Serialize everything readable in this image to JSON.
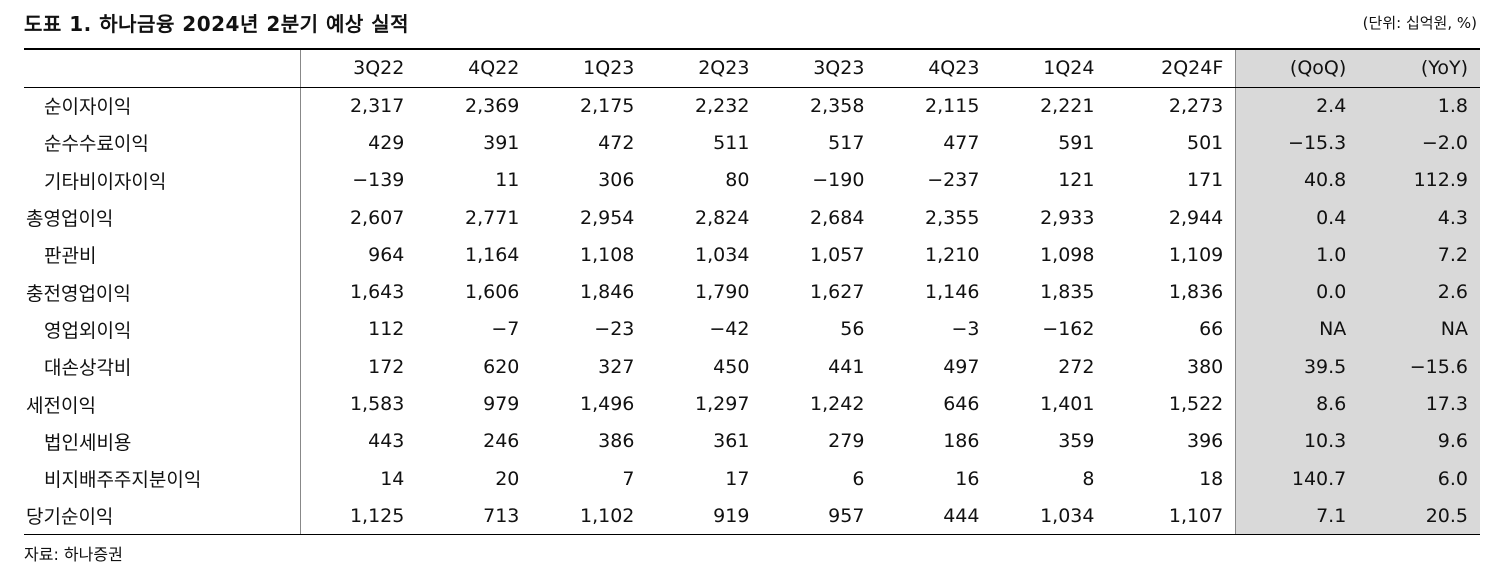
{
  "header": {
    "title": "도표 1. 하나금융 2024년 2분기 예상 실적",
    "unit": "(단위: 십억원, %)"
  },
  "table": {
    "columns": [
      "3Q22",
      "4Q22",
      "1Q23",
      "2Q23",
      "3Q23",
      "4Q23",
      "1Q24",
      "2Q24F",
      "(QoQ)",
      "(YoY)"
    ],
    "rows": [
      [
        "순이자이익",
        "2,317",
        "2,369",
        "2,175",
        "2,232",
        "2,358",
        "2,115",
        "2,221",
        "2,273",
        "2.4",
        "1.8"
      ],
      [
        "순수수료이익",
        "429",
        "391",
        "472",
        "511",
        "517",
        "477",
        "591",
        "501",
        "−15.3",
        "−2.0"
      ],
      [
        "기타비이자이익",
        "−139",
        "11",
        "306",
        "80",
        "−190",
        "−237",
        "121",
        "171",
        "40.8",
        "112.9"
      ],
      [
        "총영업이익",
        "2,607",
        "2,771",
        "2,954",
        "2,824",
        "2,684",
        "2,355",
        "2,933",
        "2,944",
        "0.4",
        "4.3"
      ],
      [
        "판관비",
        "964",
        "1,164",
        "1,108",
        "1,034",
        "1,057",
        "1,210",
        "1,098",
        "1,109",
        "1.0",
        "7.2"
      ],
      [
        "충전영업이익",
        "1,643",
        "1,606",
        "1,846",
        "1,790",
        "1,627",
        "1,146",
        "1,835",
        "1,836",
        "0.0",
        "2.6"
      ],
      [
        "영업외이익",
        "112",
        "−7",
        "−23",
        "−42",
        "56",
        "−3",
        "−162",
        "66",
        "NA",
        "NA"
      ],
      [
        "대손상각비",
        "172",
        "620",
        "327",
        "450",
        "441",
        "497",
        "272",
        "380",
        "39.5",
        "−15.6"
      ],
      [
        "세전이익",
        "1,583",
        "979",
        "1,496",
        "1,297",
        "1,242",
        "646",
        "1,401",
        "1,522",
        "8.6",
        "17.3"
      ],
      [
        "법인세비용",
        "443",
        "246",
        "386",
        "361",
        "279",
        "186",
        "359",
        "396",
        "10.3",
        "9.6"
      ],
      [
        "비지배주주지분이익",
        "14",
        "20",
        "7",
        "17",
        "6",
        "16",
        "8",
        "18",
        "140.7",
        "6.0"
      ],
      [
        "당기순이익",
        "1,125",
        "713",
        "1,102",
        "919",
        "957",
        "444",
        "1,034",
        "1,107",
        "7.1",
        "20.5"
      ]
    ]
  },
  "source": "자료: 하나증권"
}
